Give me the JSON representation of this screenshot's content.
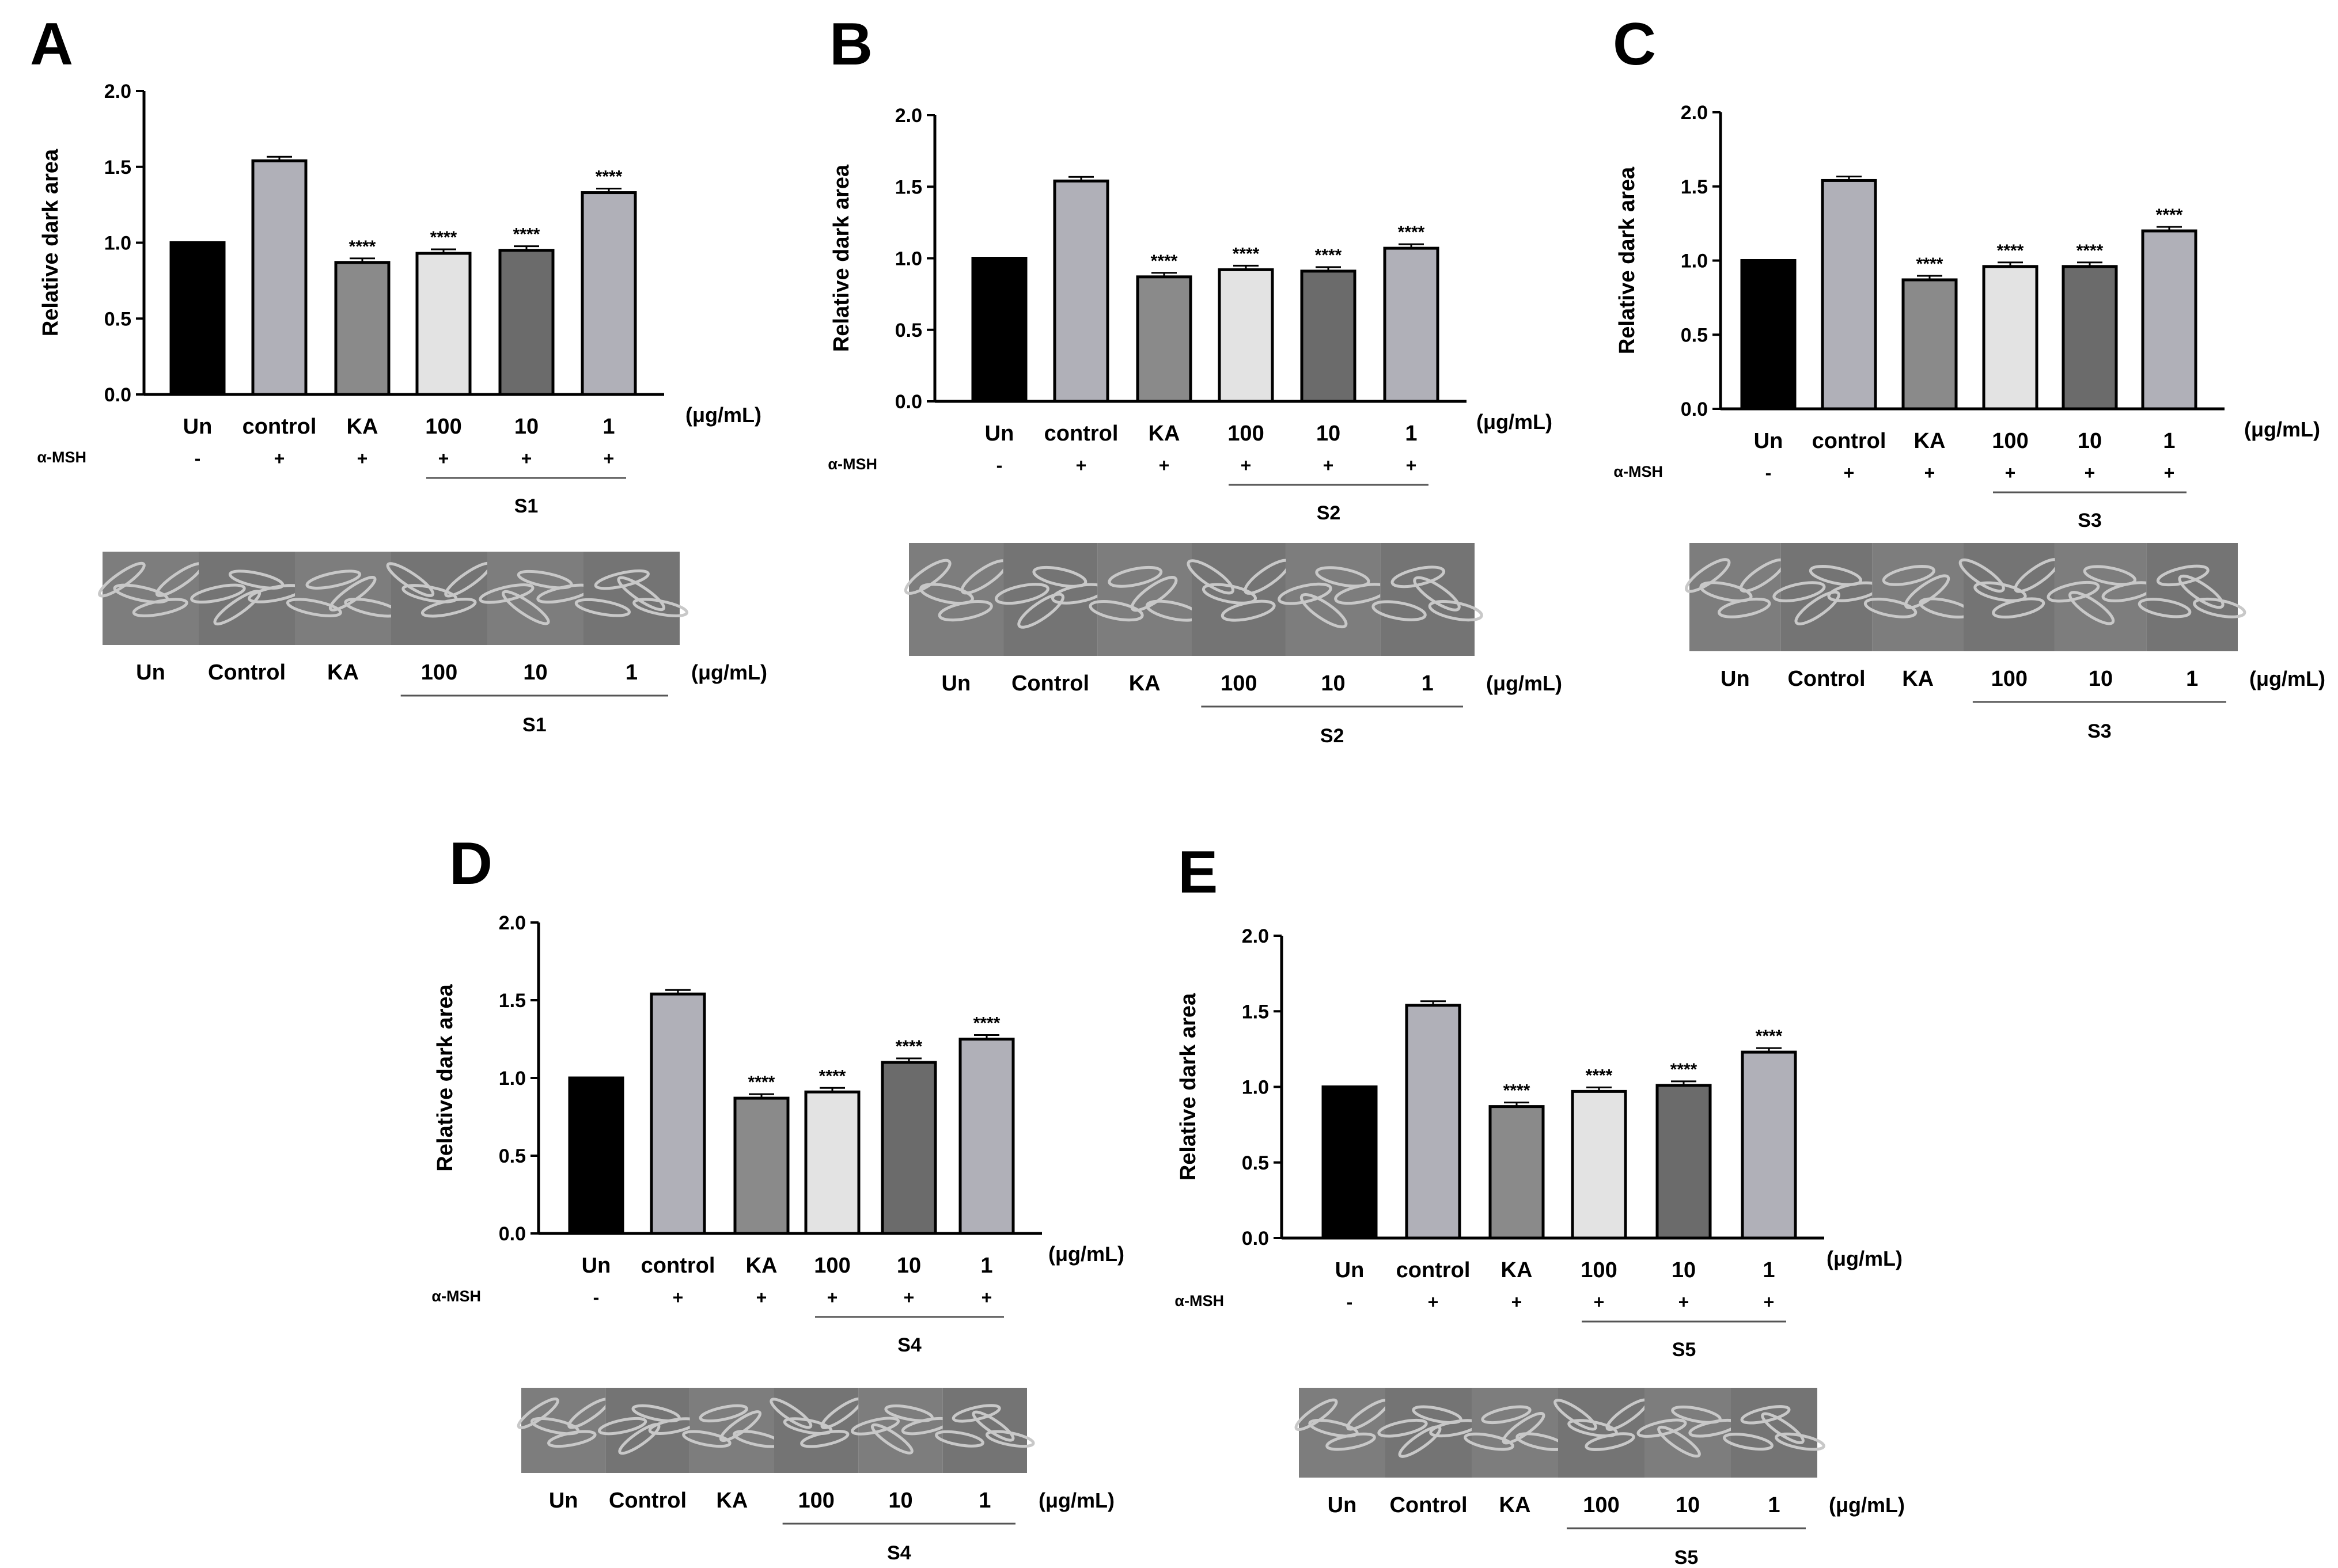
{
  "figure": {
    "msh_label": "α-MSH",
    "unit_label": "(μg/mL)",
    "significance": "****",
    "image_labels": [
      "Un",
      "Control",
      "KA",
      "100",
      "10",
      "1"
    ],
    "colors": {
      "axis": "#000000",
      "bars": [
        "#000000",
        "#b0b0b8",
        "#8a8a8a",
        "#e3e3e3",
        "#6b6b6b",
        "#b0b0b8"
      ],
      "micrograph_bg": "#7d7d7d",
      "cell": "#c8c8c8"
    }
  },
  "chart_data": [
    {
      "panel": "A",
      "type": "bar",
      "ylabel": "Relative dark area",
      "ylim": [
        0,
        2.0
      ],
      "yticks": [
        "0.0",
        "0.5",
        "1.0",
        "1.5",
        "2.0"
      ],
      "categories": [
        "Un",
        "control",
        "KA",
        "100",
        "10",
        "1"
      ],
      "values": [
        1.0,
        1.54,
        0.87,
        0.93,
        0.95,
        1.33
      ],
      "msh": [
        "-",
        "+",
        "+",
        "+",
        "+",
        "+"
      ],
      "significant": [
        false,
        false,
        true,
        true,
        true,
        true
      ],
      "sample": "S1"
    },
    {
      "panel": "B",
      "type": "bar",
      "ylabel": "Relative dark area",
      "ylim": [
        0,
        2.0
      ],
      "yticks": [
        "0.0",
        "0.5",
        "1.0",
        "1.5",
        "2.0"
      ],
      "categories": [
        "Un",
        "control",
        "KA",
        "100",
        "10",
        "1"
      ],
      "values": [
        1.0,
        1.54,
        0.87,
        0.92,
        0.91,
        1.07
      ],
      "msh": [
        "-",
        "+",
        "+",
        "+",
        "+",
        "+"
      ],
      "significant": [
        false,
        false,
        true,
        true,
        true,
        true
      ],
      "sample": "S2"
    },
    {
      "panel": "C",
      "type": "bar",
      "ylabel": "Relative dark area",
      "ylim": [
        0,
        2.0
      ],
      "yticks": [
        "0.0",
        "0.5",
        "1.0",
        "1.5",
        "2.0"
      ],
      "categories": [
        "Un",
        "control",
        "KA",
        "100",
        "10",
        "1"
      ],
      "values": [
        1.0,
        1.54,
        0.87,
        0.96,
        0.96,
        1.2
      ],
      "msh": [
        "-",
        "+",
        "+",
        "+",
        "+",
        "+"
      ],
      "significant": [
        false,
        false,
        true,
        true,
        true,
        true
      ],
      "sample": "S3"
    },
    {
      "panel": "D",
      "type": "bar",
      "ylabel": "Relative dark area",
      "ylim": [
        0,
        2.0
      ],
      "yticks": [
        "0.0",
        "0.5",
        "1.0",
        "1.5",
        "2.0"
      ],
      "categories": [
        "Un",
        "control",
        "KA",
        "100",
        "10",
        "1"
      ],
      "values": [
        1.0,
        1.54,
        0.87,
        0.91,
        1.1,
        1.25
      ],
      "msh": [
        "-",
        "+",
        "+",
        "+",
        "+",
        "+"
      ],
      "significant": [
        false,
        false,
        true,
        true,
        true,
        true
      ],
      "sample": "S4"
    },
    {
      "panel": "E",
      "type": "bar",
      "ylabel": "Relative dark area",
      "ylim": [
        0,
        2.0
      ],
      "yticks": [
        "0.0",
        "0.5",
        "1.0",
        "1.5",
        "2.0"
      ],
      "categories": [
        "Un",
        "control",
        "KA",
        "100",
        "10",
        "1"
      ],
      "values": [
        1.0,
        1.54,
        0.87,
        0.97,
        1.01,
        1.23
      ],
      "msh": [
        "-",
        "+",
        "+",
        "+",
        "+",
        "+"
      ],
      "significant": [
        false,
        false,
        true,
        true,
        true,
        true
      ],
      "sample": "S5"
    }
  ]
}
